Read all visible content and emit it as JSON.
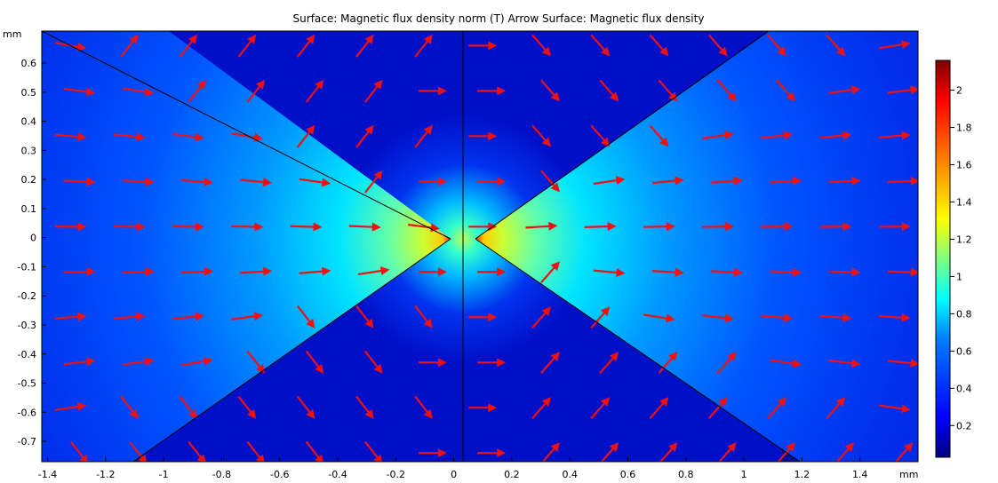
{
  "chart_data": {
    "type": "heatmap",
    "title": "Surface: Magnetic flux density norm (T)  Arrow Surface: Magnetic flux density",
    "x_unit": "mm",
    "y_unit": "mm",
    "xlim": [
      -1.42,
      1.6
    ],
    "ylim": [
      -0.77,
      0.71
    ],
    "x_ticks": [
      "-1.4",
      "-1.2",
      "-1",
      "-0.8",
      "-0.6",
      "-0.4",
      "-0.2",
      "0",
      "0.2",
      "0.4",
      "0.6",
      "0.8",
      "1",
      "1.2",
      "1.4"
    ],
    "y_ticks": [
      "0.6",
      "0.5",
      "0.4",
      "0.3",
      "0.2",
      "0.1",
      "0",
      "-0.1",
      "-0.2",
      "-0.3",
      "-0.4",
      "-0.5",
      "-0.6",
      "-0.7"
    ],
    "colorbar": {
      "range": [
        0.03,
        2.16
      ],
      "ticks": [
        "2",
        "1.8",
        "1.6",
        "1.4",
        "1.2",
        "1",
        "0.8",
        "0.6",
        "0.4",
        "0.2"
      ],
      "colormap": "rainbow",
      "colors": [
        "#00007f",
        "#0000ff",
        "#007fff",
        "#00ffff",
        "#7fff7f",
        "#ffff00",
        "#ff7f00",
        "#ff0000",
        "#7f0000"
      ]
    },
    "geometry": {
      "left_pole": {
        "tip": [
          0.0,
          0.0
        ],
        "upper_edge_end": [
          -1.42,
          0.71
        ],
        "lower_edge_end": [
          -1.42,
          -0.71
        ]
      },
      "right_pole": {
        "tip": [
          0.09,
          0.0
        ],
        "upper_edge_end": [
          1.6,
          0.71
        ],
        "lower_edge_end": [
          1.6,
          -0.71
        ]
      },
      "divider_x": 0.045
    },
    "arrow_color": "#ee1111"
  }
}
